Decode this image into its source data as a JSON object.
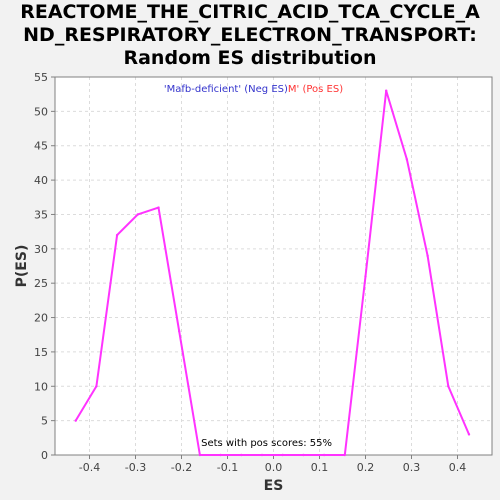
{
  "title_lines": [
    "REACTOME_THE_CITRIC_ACID_TCA_CYCLE_A",
    "ND_RESPIRATORY_ELECTRON_TRANSPORT:",
    "Random ES distribution"
  ],
  "colors": {
    "line": "#ff33ff",
    "neg_label": "#3333cc",
    "pos_label": "#ff3333",
    "grid": "#dcdcdc",
    "plot_bg": "#ffffff",
    "page_bg": "#f2f2f2"
  },
  "chart_data": {
    "type": "line",
    "title": "REACTOME_THE_CITRIC_ACID_TCA_CYCLE_AND_RESPIRATORY_ELECTRON_TRANSPORT: Random ES distribution",
    "xlabel": "ES",
    "ylabel": "P(ES)",
    "xlim": [
      -0.475,
      0.475
    ],
    "ylim": [
      0,
      55
    ],
    "xticks": [
      -0.4,
      -0.3,
      -0.2,
      -0.1,
      0.0,
      0.1,
      0.2,
      0.3,
      0.4
    ],
    "xtick_labels": [
      "-0.4",
      "-0.3",
      "-0.2",
      "-0.1",
      "0.0",
      "0.1",
      "0.2",
      "0.3",
      "0.4"
    ],
    "yticks": [
      0,
      5,
      10,
      15,
      20,
      25,
      30,
      35,
      40,
      45,
      50,
      55
    ],
    "grid": true,
    "legend": {
      "neg_text": "'Mafb-deficient' (Neg ES)",
      "pos_text": "M' (Pos ES)",
      "placement": "top-center"
    },
    "annotation": "Sets with pos scores: 55%",
    "series": [
      {
        "x": [
          -0.43,
          -0.385,
          -0.34,
          -0.295,
          -0.25,
          -0.205,
          -0.16,
          -0.115,
          -0.07,
          -0.025,
          0.02,
          0.065,
          0.11,
          0.155,
          0.2,
          0.245,
          0.29,
          0.335,
          0.38,
          0.425
        ],
        "y": [
          5,
          10,
          32,
          35,
          36,
          18,
          0,
          0,
          0,
          0,
          0,
          0,
          0,
          0,
          26,
          53,
          43,
          29,
          10,
          3
        ]
      }
    ]
  }
}
